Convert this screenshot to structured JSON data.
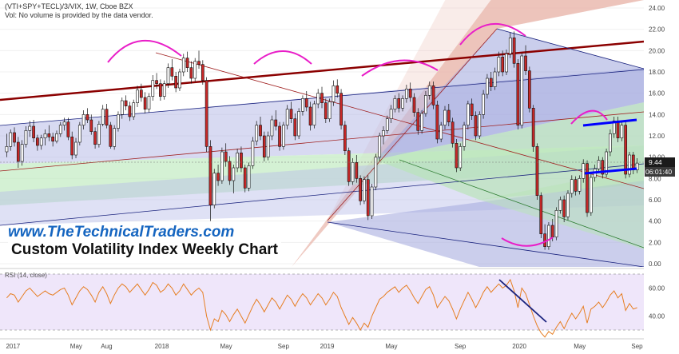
{
  "header": {
    "symbol_line": "(VTI+SPY+TECL)/3/VIX, 1W, Cboe BZX",
    "volume_note": "Vol: No volume is provided by the data vendor."
  },
  "brand_text": "www.TheTechnicalTraders.com",
  "subtitle": "Custom Volatility Index Weekly Chart",
  "price_tag": "9.44",
  "countdown_tag": "06:01:40",
  "rsi_label": "RSI (14, close)",
  "colors": {
    "up": "#ffffff",
    "down": "#c62828",
    "rsi": "#e67e22",
    "pitchfork_red": "#8b0000",
    "trend_blue": "#1a237e",
    "highlight_blue": "#0000ff",
    "arc_magenta": "#e91ec8"
  },
  "chart_data": [
    {
      "type": "candlestick",
      "title": "Custom Volatility Index Weekly Chart",
      "x_ticks": [
        "2017",
        "May",
        "Aug",
        "2018",
        "May",
        "Sep",
        "2019",
        "May",
        "Sep",
        "2020",
        "May",
        "Sep"
      ],
      "y_ticks": [
        "24.00",
        "22.00",
        "20.00",
        "18.00",
        "16.00",
        "14.00",
        "12.00",
        "10.00",
        "8.00",
        "6.00",
        "4.00",
        "2.00",
        "0.00"
      ],
      "ylim": [
        0,
        24
      ],
      "last_value": 9.44,
      "ohlc": [
        [
          10.5,
          12.2,
          10.0,
          11.0
        ],
        [
          11.0,
          12.6,
          10.6,
          12.3
        ],
        [
          12.3,
          12.8,
          11.0,
          11.4
        ],
        [
          11.4,
          11.9,
          9.0,
          9.6
        ],
        [
          9.6,
          11.6,
          9.2,
          11.2
        ],
        [
          11.2,
          12.9,
          10.9,
          12.5
        ],
        [
          12.5,
          13.4,
          11.9,
          12.9
        ],
        [
          12.9,
          13.5,
          11.4,
          11.8
        ],
        [
          11.8,
          12.1,
          10.6,
          11.1
        ],
        [
          11.1,
          12.1,
          10.7,
          11.8
        ],
        [
          11.8,
          12.6,
          11.1,
          12.2
        ],
        [
          12.2,
          13.0,
          11.5,
          11.9
        ],
        [
          11.9,
          12.3,
          11.0,
          11.5
        ],
        [
          11.5,
          12.5,
          11.3,
          12.2
        ],
        [
          12.2,
          13.3,
          11.9,
          13.0
        ],
        [
          13.0,
          13.7,
          12.5,
          13.3
        ],
        [
          13.3,
          13.7,
          11.6,
          11.9
        ],
        [
          11.9,
          12.4,
          9.8,
          10.2
        ],
        [
          10.2,
          11.8,
          9.9,
          11.4
        ],
        [
          11.4,
          13.3,
          11.1,
          13.0
        ],
        [
          13.0,
          14.4,
          12.6,
          14.0
        ],
        [
          14.0,
          14.6,
          13.2,
          13.5
        ],
        [
          13.5,
          14.0,
          12.1,
          12.4
        ],
        [
          12.4,
          12.8,
          10.8,
          11.2
        ],
        [
          11.2,
          13.4,
          10.9,
          13.1
        ],
        [
          13.1,
          14.9,
          12.9,
          14.5
        ],
        [
          14.5,
          15.0,
          12.7,
          13.0
        ],
        [
          13.0,
          13.3,
          10.8,
          11.0
        ],
        [
          11.0,
          13.0,
          10.7,
          12.7
        ],
        [
          12.7,
          14.3,
          12.4,
          14.0
        ],
        [
          14.0,
          15.6,
          13.6,
          15.3
        ],
        [
          15.3,
          15.8,
          14.4,
          14.8
        ],
        [
          14.8,
          15.2,
          13.4,
          13.8
        ],
        [
          13.8,
          15.4,
          13.5,
          15.1
        ],
        [
          15.1,
          16.7,
          14.7,
          16.3
        ],
        [
          16.3,
          16.9,
          15.2,
          15.6
        ],
        [
          15.6,
          16.1,
          14.1,
          14.5
        ],
        [
          14.5,
          16.0,
          14.2,
          15.7
        ],
        [
          15.7,
          17.7,
          15.3,
          17.2
        ],
        [
          17.2,
          17.9,
          16.4,
          16.9
        ],
        [
          16.9,
          17.3,
          15.3,
          15.7
        ],
        [
          15.7,
          17.2,
          15.4,
          16.9
        ],
        [
          16.9,
          18.8,
          16.5,
          18.4
        ],
        [
          18.4,
          19.2,
          17.2,
          17.6
        ],
        [
          17.6,
          18.0,
          16.1,
          16.5
        ],
        [
          16.5,
          18.3,
          16.2,
          18.0
        ],
        [
          18.0,
          19.7,
          17.6,
          19.3
        ],
        [
          19.3,
          19.9,
          18.0,
          18.4
        ],
        [
          18.4,
          19.0,
          16.9,
          17.4
        ],
        [
          17.4,
          19.3,
          17.1,
          19.0
        ],
        [
          19.0,
          20.0,
          18.3,
          18.7
        ],
        [
          18.7,
          19.1,
          16.8,
          17.2
        ],
        [
          17.2,
          17.5,
          10.5,
          11.0
        ],
        [
          11.0,
          11.6,
          4.0,
          5.5
        ],
        [
          5.5,
          8.9,
          5.2,
          8.5
        ],
        [
          8.5,
          9.3,
          7.3,
          7.8
        ],
        [
          7.8,
          10.9,
          7.5,
          10.5
        ],
        [
          10.5,
          11.3,
          9.1,
          9.6
        ],
        [
          9.6,
          10.1,
          7.4,
          7.8
        ],
        [
          7.8,
          9.3,
          6.6,
          9.0
        ],
        [
          9.0,
          10.8,
          8.6,
          10.4
        ],
        [
          10.4,
          11.0,
          8.6,
          9.0
        ],
        [
          9.0,
          9.3,
          6.7,
          7.1
        ],
        [
          7.1,
          9.5,
          6.8,
          9.2
        ],
        [
          9.2,
          11.9,
          8.9,
          11.5
        ],
        [
          11.5,
          13.4,
          11.1,
          13.0
        ],
        [
          13.0,
          13.8,
          11.6,
          12.0
        ],
        [
          12.0,
          12.4,
          9.6,
          10.0
        ],
        [
          10.0,
          12.4,
          9.7,
          12.0
        ],
        [
          12.0,
          13.9,
          11.6,
          13.5
        ],
        [
          13.5,
          14.4,
          12.5,
          12.9
        ],
        [
          12.9,
          13.3,
          10.6,
          11.0
        ],
        [
          11.0,
          13.3,
          10.7,
          13.0
        ],
        [
          13.0,
          14.9,
          12.6,
          14.5
        ],
        [
          14.5,
          15.2,
          13.2,
          13.6
        ],
        [
          13.6,
          14.1,
          11.6,
          12.0
        ],
        [
          12.0,
          14.6,
          11.7,
          14.3
        ],
        [
          14.3,
          15.8,
          13.9,
          15.5
        ],
        [
          15.5,
          16.2,
          14.3,
          14.7
        ],
        [
          14.7,
          15.2,
          12.5,
          13.0
        ],
        [
          13.0,
          15.3,
          12.7,
          15.0
        ],
        [
          15.0,
          16.4,
          14.6,
          16.0
        ],
        [
          16.0,
          16.6,
          14.6,
          15.1
        ],
        [
          15.1,
          15.5,
          13.2,
          13.6
        ],
        [
          13.6,
          15.5,
          13.3,
          15.2
        ],
        [
          15.2,
          17.2,
          14.8,
          16.7
        ],
        [
          16.7,
          17.3,
          15.6,
          16.0
        ],
        [
          16.0,
          16.4,
          12.6,
          13.0
        ],
        [
          13.0,
          13.4,
          10.2,
          10.6
        ],
        [
          10.6,
          10.9,
          7.3,
          7.7
        ],
        [
          7.7,
          9.9,
          7.4,
          9.5
        ],
        [
          9.5,
          10.2,
          7.6,
          8.0
        ],
        [
          8.0,
          8.3,
          5.5,
          5.9
        ],
        [
          5.9,
          8.2,
          5.6,
          7.9
        ],
        [
          7.9,
          8.3,
          4.1,
          4.5
        ],
        [
          4.5,
          7.5,
          4.2,
          7.2
        ],
        [
          7.2,
          10.3,
          6.9,
          10.0
        ],
        [
          10.0,
          12.3,
          9.6,
          12.0
        ],
        [
          12.0,
          12.9,
          11.2,
          12.5
        ],
        [
          12.5,
          13.9,
          12.2,
          13.6
        ],
        [
          13.6,
          14.9,
          13.2,
          14.5
        ],
        [
          14.5,
          15.8,
          14.2,
          15.5
        ],
        [
          15.5,
          16.0,
          14.2,
          14.6
        ],
        [
          14.6,
          15.8,
          14.3,
          15.5
        ],
        [
          15.5,
          16.8,
          15.1,
          16.4
        ],
        [
          16.4,
          17.0,
          15.2,
          15.6
        ],
        [
          15.6,
          16.0,
          13.8,
          14.2
        ],
        [
          14.2,
          14.6,
          12.1,
          12.5
        ],
        [
          12.5,
          14.4,
          12.2,
          14.1
        ],
        [
          14.1,
          16.2,
          13.8,
          15.8
        ],
        [
          15.8,
          17.1,
          15.4,
          16.7
        ],
        [
          16.7,
          17.1,
          14.5,
          14.9
        ],
        [
          14.9,
          15.3,
          11.3,
          11.7
        ],
        [
          11.7,
          13.3,
          11.4,
          13.0
        ],
        [
          13.0,
          14.8,
          12.6,
          14.4
        ],
        [
          14.4,
          15.0,
          12.9,
          13.3
        ],
        [
          13.3,
          13.7,
          10.9,
          11.3
        ],
        [
          11.3,
          11.7,
          8.6,
          9.0
        ],
        [
          9.0,
          11.3,
          8.7,
          11.0
        ],
        [
          11.0,
          13.3,
          10.6,
          13.0
        ],
        [
          13.0,
          15.3,
          12.6,
          15.0
        ],
        [
          15.0,
          15.5,
          13.5,
          13.9
        ],
        [
          13.9,
          14.3,
          11.6,
          12.0
        ],
        [
          12.0,
          14.3,
          11.7,
          14.0
        ],
        [
          14.0,
          16.3,
          13.6,
          15.9
        ],
        [
          15.9,
          17.8,
          15.5,
          17.4
        ],
        [
          17.4,
          18.0,
          16.2,
          16.6
        ],
        [
          16.6,
          18.4,
          16.3,
          18.0
        ],
        [
          18.0,
          19.9,
          17.6,
          19.4
        ],
        [
          19.4,
          20.0,
          17.6,
          18.0
        ],
        [
          18.0,
          20.1,
          17.7,
          19.7
        ],
        [
          19.7,
          21.7,
          19.3,
          21.2
        ],
        [
          21.2,
          21.8,
          18.4,
          18.8
        ],
        [
          18.8,
          19.2,
          12.6,
          13.0
        ],
        [
          13.0,
          19.8,
          12.7,
          19.5
        ],
        [
          19.5,
          20.5,
          17.7,
          18.1
        ],
        [
          18.1,
          18.5,
          14.2,
          14.6
        ],
        [
          14.6,
          14.9,
          10.5,
          11.0
        ],
        [
          11.0,
          11.3,
          6.0,
          6.4
        ],
        [
          6.4,
          6.7,
          2.4,
          2.8
        ],
        [
          2.8,
          3.7,
          1.3,
          1.6
        ],
        [
          1.6,
          3.9,
          1.3,
          3.6
        ],
        [
          3.6,
          4.2,
          2.1,
          2.5
        ],
        [
          2.5,
          5.3,
          2.2,
          5.0
        ],
        [
          5.0,
          6.3,
          4.7,
          6.0
        ],
        [
          6.0,
          6.4,
          3.9,
          4.4
        ],
        [
          4.4,
          6.9,
          4.1,
          6.6
        ],
        [
          6.6,
          8.3,
          6.2,
          7.9
        ],
        [
          7.9,
          8.2,
          6.4,
          6.8
        ],
        [
          6.8,
          8.3,
          6.5,
          8.0
        ],
        [
          8.0,
          9.8,
          7.6,
          9.4
        ],
        [
          9.4,
          9.7,
          4.4,
          4.8
        ],
        [
          4.8,
          8.4,
          4.5,
          8.1
        ],
        [
          8.1,
          9.3,
          7.7,
          8.9
        ],
        [
          8.9,
          10.1,
          8.5,
          9.7
        ],
        [
          9.7,
          10.0,
          8.0,
          8.4
        ],
        [
          8.4,
          10.8,
          8.1,
          10.5
        ],
        [
          10.5,
          12.6,
          10.1,
          12.2
        ],
        [
          12.2,
          13.8,
          11.8,
          13.4
        ],
        [
          13.4,
          13.8,
          11.4,
          11.8
        ],
        [
          11.8,
          13.3,
          11.5,
          13.0
        ],
        [
          13.0,
          13.3,
          8.0,
          8.4
        ],
        [
          8.4,
          10.5,
          8.1,
          10.2
        ],
        [
          10.2,
          10.5,
          8.4,
          8.8
        ],
        [
          8.8,
          9.9,
          8.5,
          9.44
        ]
      ]
    },
    {
      "type": "line",
      "title": "RSI (14, close)",
      "y_ticks": [
        "60.00",
        "40.00"
      ],
      "ylim": [
        27,
        72
      ],
      "values": [
        53,
        56,
        55,
        50,
        54,
        58,
        60,
        57,
        54,
        56,
        58,
        56,
        55,
        57,
        59,
        60,
        55,
        48,
        53,
        58,
        61,
        59,
        55,
        50,
        57,
        61,
        56,
        49,
        55,
        60,
        63,
        61,
        57,
        60,
        63,
        59,
        55,
        59,
        64,
        62,
        57,
        59,
        63,
        60,
        55,
        58,
        63,
        59,
        55,
        58,
        60,
        57,
        40,
        30,
        38,
        36,
        44,
        41,
        36,
        41,
        45,
        40,
        35,
        41,
        47,
        52,
        48,
        43,
        48,
        53,
        50,
        45,
        50,
        55,
        52,
        47,
        52,
        56,
        53,
        48,
        52,
        56,
        53,
        48,
        52,
        57,
        54,
        46,
        40,
        34,
        39,
        35,
        30,
        35,
        32,
        40,
        46,
        52,
        54,
        57,
        59,
        61,
        57,
        60,
        62,
        58,
        53,
        49,
        54,
        59,
        61,
        55,
        46,
        50,
        54,
        51,
        45,
        38,
        45,
        51,
        57,
        52,
        46,
        51,
        57,
        61,
        57,
        60,
        63,
        60,
        62,
        66,
        58,
        46,
        60,
        56,
        48,
        40,
        33,
        28,
        25,
        29,
        27,
        32,
        36,
        31,
        37,
        42,
        38,
        42,
        47,
        35,
        45,
        47,
        50,
        46,
        50,
        55,
        58,
        53,
        56,
        44,
        49,
        45,
        46
      ]
    }
  ]
}
